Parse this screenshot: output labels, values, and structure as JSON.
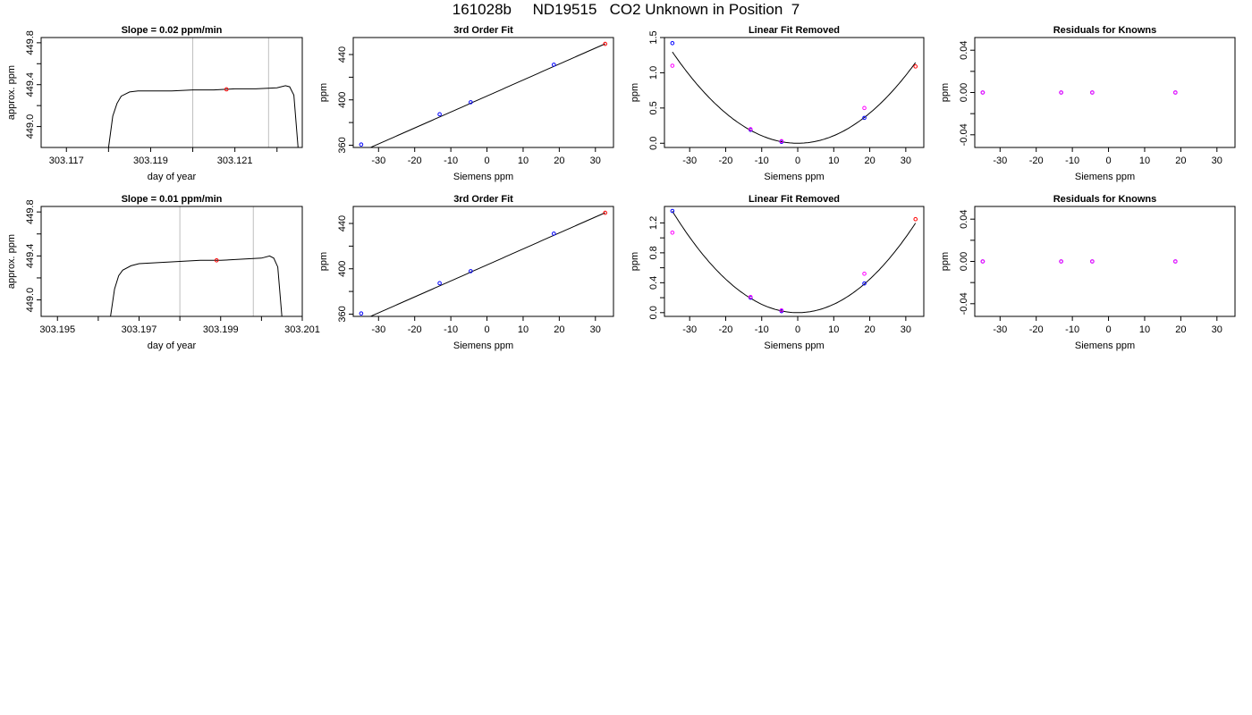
{
  "title": "161028b     ND19515   CO2 Unknown in Position  7",
  "colors": {
    "trace": "#000000",
    "known": "#0000ff",
    "unknown": "#ff0000",
    "fit_point": "#ff00ff",
    "marker_line": "#bebebe"
  },
  "chart_data": [
    {
      "id": "r0p0",
      "type": "line",
      "title": "Slope =  0.02  ppm/min",
      "xlabel": "day of year",
      "ylabel": "approx. ppm",
      "xlim": [
        303.1164,
        303.1226
      ],
      "ylim": [
        448.8,
        449.85
      ],
      "xticks": [
        303.117,
        303.118,
        303.119,
        303.12,
        303.121,
        303.122
      ],
      "xticklabels": [
        "303.117",
        "",
        "303.119",
        "",
        "303.121",
        ""
      ],
      "yticks": [
        449.0,
        449.2,
        449.4,
        449.6,
        449.8
      ],
      "yticklabels": [
        "449.0",
        "",
        "449.4",
        "",
        "449.8"
      ],
      "vlines": [
        303.12,
        303.1218
      ],
      "series": [
        {
          "x": [
            303.118,
            303.1181,
            303.1182,
            303.1183,
            303.1185,
            303.1187,
            303.119,
            303.1195,
            303.12,
            303.1205,
            303.121,
            303.1215,
            303.122,
            303.1222,
            303.1223,
            303.1224,
            303.1225
          ],
          "y": [
            448.8,
            449.1,
            449.22,
            449.29,
            449.33,
            449.34,
            449.34,
            449.34,
            449.35,
            449.35,
            449.36,
            449.36,
            449.37,
            449.39,
            449.38,
            449.3,
            448.8
          ]
        }
      ],
      "points": [
        {
          "x": 303.1208,
          "y": 449.355,
          "role": "unknown"
        }
      ]
    },
    {
      "id": "r0p1",
      "type": "scatter",
      "title": "3rd Order Fit",
      "xlabel": "Siemens ppm",
      "ylabel": "ppm",
      "xlim": [
        -37,
        35
      ],
      "ylim": [
        358,
        455
      ],
      "xticks": [
        -30,
        -20,
        -10,
        0,
        10,
        20,
        30
      ],
      "xticklabels": [
        "-30",
        "-20",
        "-10",
        "0",
        "10",
        "20",
        "30"
      ],
      "yticks": [
        360,
        380,
        400,
        420,
        440
      ],
      "yticklabels": [
        "360",
        "",
        "400",
        "",
        "440"
      ],
      "fit": {
        "coeffs": [
          403.4,
          1.41,
          0.0,
          0.0
        ]
      },
      "points": [
        {
          "x": -34.8,
          "y": 360.6,
          "role": "known"
        },
        {
          "x": -13.1,
          "y": 387.3,
          "role": "known"
        },
        {
          "x": -4.5,
          "y": 397.9,
          "role": "known"
        },
        {
          "x": 18.5,
          "y": 431.0,
          "role": "known"
        },
        {
          "x": 32.7,
          "y": 449.4,
          "role": "unknown"
        }
      ]
    },
    {
      "id": "r0p2",
      "type": "scatter",
      "title": "Linear Fit Removed",
      "xlabel": "Siemens ppm",
      "ylabel": "ppm",
      "xlim": [
        -37,
        35
      ],
      "ylim": [
        -0.06,
        1.5
      ],
      "xticks": [
        -30,
        -20,
        -10,
        0,
        10,
        20,
        30
      ],
      "xticklabels": [
        "-30",
        "-20",
        "-10",
        "0",
        "10",
        "20",
        "30"
      ],
      "yticks": [
        0.0,
        0.5,
        1.0,
        1.5
      ],
      "yticklabels": [
        "0.0",
        "0.5",
        "1.0",
        "1.5"
      ],
      "fit": {
        "coeffs": [
          0.0,
          0.0,
          0.00107,
          0.0
        ]
      },
      "points": [
        {
          "x": -34.8,
          "y": 1.42,
          "role": "known"
        },
        {
          "x": -13.1,
          "y": 0.19,
          "role": "known"
        },
        {
          "x": -4.5,
          "y": 0.02,
          "role": "known"
        },
        {
          "x": 18.5,
          "y": 0.36,
          "role": "known"
        },
        {
          "x": 32.7,
          "y": 1.09,
          "role": "unknown"
        },
        {
          "x": -34.8,
          "y": 1.1,
          "role": "fit_point"
        },
        {
          "x": -13.1,
          "y": 0.2,
          "role": "fit_point"
        },
        {
          "x": -4.5,
          "y": 0.03,
          "role": "fit_point"
        },
        {
          "x": 18.5,
          "y": 0.5,
          "role": "fit_point"
        }
      ]
    },
    {
      "id": "r0p3",
      "type": "scatter",
      "title": "Residuals for Knowns",
      "xlabel": "Siemens ppm",
      "ylabel": "ppm",
      "xlim": [
        -37,
        35
      ],
      "ylim": [
        -0.052,
        0.052
      ],
      "xticks": [
        -30,
        -20,
        -10,
        0,
        10,
        20,
        30
      ],
      "xticklabels": [
        "-30",
        "-20",
        "-10",
        "0",
        "10",
        "20",
        "30"
      ],
      "yticks": [
        -0.04,
        -0.02,
        0.0,
        0.02,
        0.04
      ],
      "yticklabels": [
        "-0.04",
        "",
        "0.00",
        "",
        "0.04"
      ],
      "points": [
        {
          "x": -34.8,
          "y": 0.0,
          "role": "known"
        },
        {
          "x": -13.1,
          "y": 0.0,
          "role": "known"
        },
        {
          "x": -4.5,
          "y": 0.0,
          "role": "known"
        },
        {
          "x": 18.5,
          "y": 0.0,
          "role": "known"
        },
        {
          "x": -34.8,
          "y": 0.0,
          "role": "fit_point"
        },
        {
          "x": -13.1,
          "y": 0.0,
          "role": "fit_point"
        },
        {
          "x": -4.5,
          "y": 0.0,
          "role": "fit_point"
        },
        {
          "x": 18.5,
          "y": 0.0,
          "role": "fit_point"
        }
      ]
    },
    {
      "id": "r1p0",
      "type": "line",
      "title": "Slope =  0.01  ppm/min",
      "xlabel": "day of year",
      "ylabel": "approx. ppm",
      "xlim": [
        303.1946,
        303.201
      ],
      "ylim": [
        448.85,
        449.85
      ],
      "xticks": [
        303.195,
        303.196,
        303.197,
        303.198,
        303.199,
        303.2,
        303.201
      ],
      "xticklabels": [
        "303.195",
        "",
        "303.197",
        "",
        "303.199",
        "",
        "303.201"
      ],
      "yticks": [
        449.0,
        449.2,
        449.4,
        449.6,
        449.8
      ],
      "yticklabels": [
        "449.0",
        "",
        "449.4",
        "",
        "449.8"
      ],
      "vlines": [
        303.198,
        303.1998
      ],
      "series": [
        {
          "x": [
            303.1963,
            303.1964,
            303.1965,
            303.1966,
            303.1968,
            303.197,
            303.1975,
            303.198,
            303.1985,
            303.199,
            303.1995,
            303.2,
            303.2002,
            303.2003,
            303.2004,
            303.2005
          ],
          "y": [
            448.85,
            449.1,
            449.22,
            449.27,
            449.31,
            449.33,
            449.34,
            449.35,
            449.36,
            449.36,
            449.37,
            449.38,
            449.4,
            449.38,
            449.3,
            448.85
          ]
        }
      ],
      "points": [
        {
          "x": 303.1989,
          "y": 449.36,
          "role": "unknown"
        }
      ]
    },
    {
      "id": "r1p1",
      "type": "scatter",
      "title": "3rd Order Fit",
      "xlabel": "Siemens ppm",
      "ylabel": "ppm",
      "xlim": [
        -37,
        35
      ],
      "ylim": [
        358,
        455
      ],
      "xticks": [
        -30,
        -20,
        -10,
        0,
        10,
        20,
        30
      ],
      "xticklabels": [
        "-30",
        "-20",
        "-10",
        "0",
        "10",
        "20",
        "30"
      ],
      "yticks": [
        360,
        380,
        400,
        420,
        440
      ],
      "yticklabels": [
        "360",
        "",
        "400",
        "",
        "440"
      ],
      "fit": {
        "coeffs": [
          403.4,
          1.41,
          0.0,
          0.0
        ]
      },
      "points": [
        {
          "x": -34.8,
          "y": 360.6,
          "role": "known"
        },
        {
          "x": -13.1,
          "y": 387.3,
          "role": "known"
        },
        {
          "x": -4.5,
          "y": 397.9,
          "role": "known"
        },
        {
          "x": 18.5,
          "y": 431.0,
          "role": "known"
        },
        {
          "x": 32.7,
          "y": 449.4,
          "role": "unknown"
        }
      ]
    },
    {
      "id": "r1p2",
      "type": "scatter",
      "title": "Linear Fit Removed",
      "xlabel": "Siemens ppm",
      "ylabel": "ppm",
      "xlim": [
        -37,
        35
      ],
      "ylim": [
        -0.05,
        1.42
      ],
      "xticks": [
        -30,
        -20,
        -10,
        0,
        10,
        20,
        30
      ],
      "xticklabels": [
        "-30",
        "-20",
        "-10",
        "0",
        "10",
        "20",
        "30"
      ],
      "yticks": [
        0.0,
        0.2,
        0.4,
        0.6,
        0.8,
        1.0,
        1.2
      ],
      "yticklabels": [
        "0.0",
        "",
        "0.4",
        "",
        "0.8",
        "",
        "1.2"
      ],
      "fit": {
        "coeffs": [
          0.0,
          0.0,
          0.00112,
          0.0
        ]
      },
      "points": [
        {
          "x": -34.8,
          "y": 1.36,
          "role": "known"
        },
        {
          "x": -13.1,
          "y": 0.2,
          "role": "known"
        },
        {
          "x": -4.5,
          "y": 0.02,
          "role": "known"
        },
        {
          "x": 18.5,
          "y": 0.39,
          "role": "known"
        },
        {
          "x": 32.7,
          "y": 1.25,
          "role": "unknown"
        },
        {
          "x": -34.8,
          "y": 1.07,
          "role": "fit_point"
        },
        {
          "x": -13.1,
          "y": 0.21,
          "role": "fit_point"
        },
        {
          "x": -4.5,
          "y": 0.03,
          "role": "fit_point"
        },
        {
          "x": 18.5,
          "y": 0.52,
          "role": "fit_point"
        }
      ]
    },
    {
      "id": "r1p3",
      "type": "scatter",
      "title": "Residuals for Knowns",
      "xlabel": "Siemens ppm",
      "ylabel": "ppm",
      "xlim": [
        -37,
        35
      ],
      "ylim": [
        -0.052,
        0.052
      ],
      "xticks": [
        -30,
        -20,
        -10,
        0,
        10,
        20,
        30
      ],
      "xticklabels": [
        "-30",
        "-20",
        "-10",
        "0",
        "10",
        "20",
        "30"
      ],
      "yticks": [
        -0.04,
        -0.02,
        0.0,
        0.02,
        0.04
      ],
      "yticklabels": [
        "-0.04",
        "",
        "0.00",
        "",
        "0.04"
      ],
      "points": [
        {
          "x": -34.8,
          "y": 0.0,
          "role": "known"
        },
        {
          "x": -13.1,
          "y": 0.0,
          "role": "known"
        },
        {
          "x": -4.5,
          "y": 0.0,
          "role": "known"
        },
        {
          "x": 18.5,
          "y": 0.0,
          "role": "known"
        },
        {
          "x": -34.8,
          "y": 0.0,
          "role": "fit_point"
        },
        {
          "x": -13.1,
          "y": 0.0,
          "role": "fit_point"
        },
        {
          "x": -4.5,
          "y": 0.0,
          "role": "fit_point"
        },
        {
          "x": 18.5,
          "y": 0.0,
          "role": "fit_point"
        }
      ]
    }
  ]
}
